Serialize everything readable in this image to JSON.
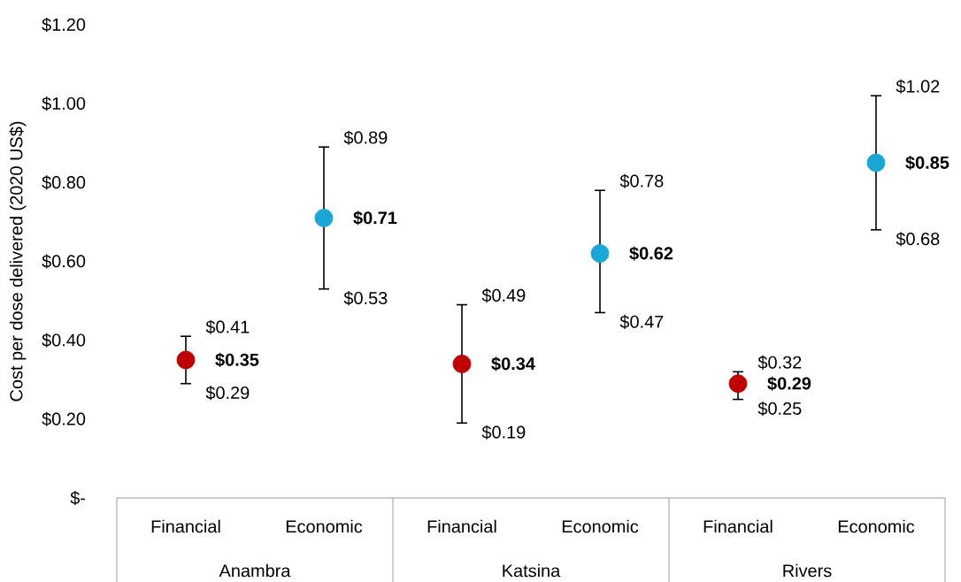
{
  "chart_data": {
    "type": "scatter",
    "ylabel": "Cost per dose delivered (2020 US$)",
    "categories": [
      "Financial",
      "Economic",
      "Financial",
      "Economic",
      "Financial",
      "Economic"
    ],
    "values": [
      0.35,
      0.71,
      0.34,
      0.62,
      0.29,
      0.85
    ],
    "colors": [
      "#c00000",
      "#19a7d8",
      "#c00000",
      "#19a7d8",
      "#c00000",
      "#19a7d8"
    ],
    "errors": [
      [
        0.29,
        0.41
      ],
      [
        0.53,
        0.89
      ],
      [
        0.19,
        0.49
      ],
      [
        0.47,
        0.78
      ],
      [
        0.25,
        0.32
      ],
      [
        0.68,
        1.02
      ]
    ],
    "value_labels": [
      "$0.35",
      "$0.71",
      "$0.34",
      "$0.62",
      "$0.29",
      "$0.85"
    ],
    "ylim": [
      0,
      1.2
    ],
    "yticks": [
      {
        "value": 0,
        "label": "$-"
      },
      {
        "value": 0.2,
        "label": "$0.20"
      },
      {
        "value": 0.4,
        "label": "$0.40"
      },
      {
        "value": 0.6,
        "label": "$0.60"
      },
      {
        "value": 0.8,
        "label": "$0.80"
      },
      {
        "value": 1.0,
        "label": "$1.00"
      },
      {
        "value": 1.2,
        "label": "$1.20"
      }
    ],
    "annotations": [
      "$0.41",
      "$0.29",
      "$0.89",
      "$0.53",
      "$0.49",
      "$0.19",
      "$0.78",
      "$0.47",
      "$0.32",
      "$0.25",
      "$1.02",
      "$0.68",
      "Anambra",
      "Katsina",
      "Rivers"
    ]
  }
}
